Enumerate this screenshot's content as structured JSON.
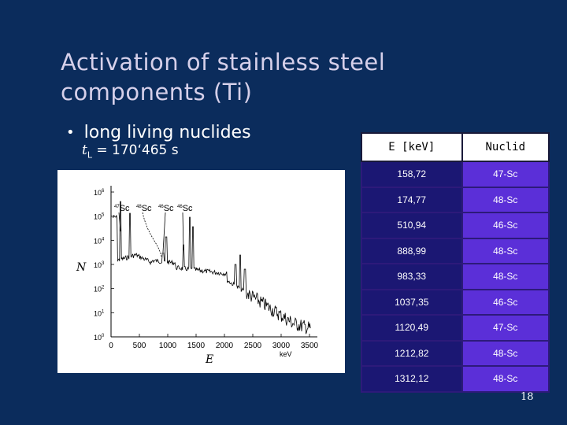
{
  "title": "Activation of stainless steel components (Ti)",
  "bullet": "long living nuclides",
  "tl": {
    "symbol": "t",
    "subscript": "L",
    "value": "= 170‘465 s"
  },
  "plot": {
    "y_label": "N",
    "x_label": "E",
    "x_unit": "keV",
    "x_ticks": [
      "0",
      "500",
      "1000",
      "1500",
      "2000",
      "2500",
      "3000",
      "3500"
    ],
    "y_ticks": [
      {
        "base": "10",
        "exp": "6"
      },
      {
        "base": "10",
        "exp": "5"
      },
      {
        "base": "10",
        "exp": "4"
      },
      {
        "base": "10",
        "exp": "3"
      },
      {
        "base": "10",
        "exp": "2"
      },
      {
        "base": "10",
        "exp": "1"
      },
      {
        "base": "10",
        "exp": "0"
      }
    ],
    "annotations": [
      {
        "mass": "47",
        "elem": "Sc"
      },
      {
        "mass": "48",
        "elem": "Sc"
      },
      {
        "mass": "46",
        "elem": "Sc"
      },
      {
        "mass": "46",
        "elem": "Sc"
      }
    ]
  },
  "table": {
    "headers": [
      "E [keV]",
      "Nuclid"
    ],
    "rows": [
      [
        "158,72",
        "47-Sc"
      ],
      [
        "174,77",
        "48-Sc"
      ],
      [
        "510,94",
        "46-Sc"
      ],
      [
        "888,99",
        "48-Sc"
      ],
      [
        "983,33",
        "48-Sc"
      ],
      [
        "1037,35",
        "46-Sc"
      ],
      [
        "1120,49",
        "47-Sc"
      ],
      [
        "1212,82",
        "48-Sc"
      ],
      [
        "1312,12",
        "48-Sc"
      ]
    ]
  },
  "page_number": "18"
}
